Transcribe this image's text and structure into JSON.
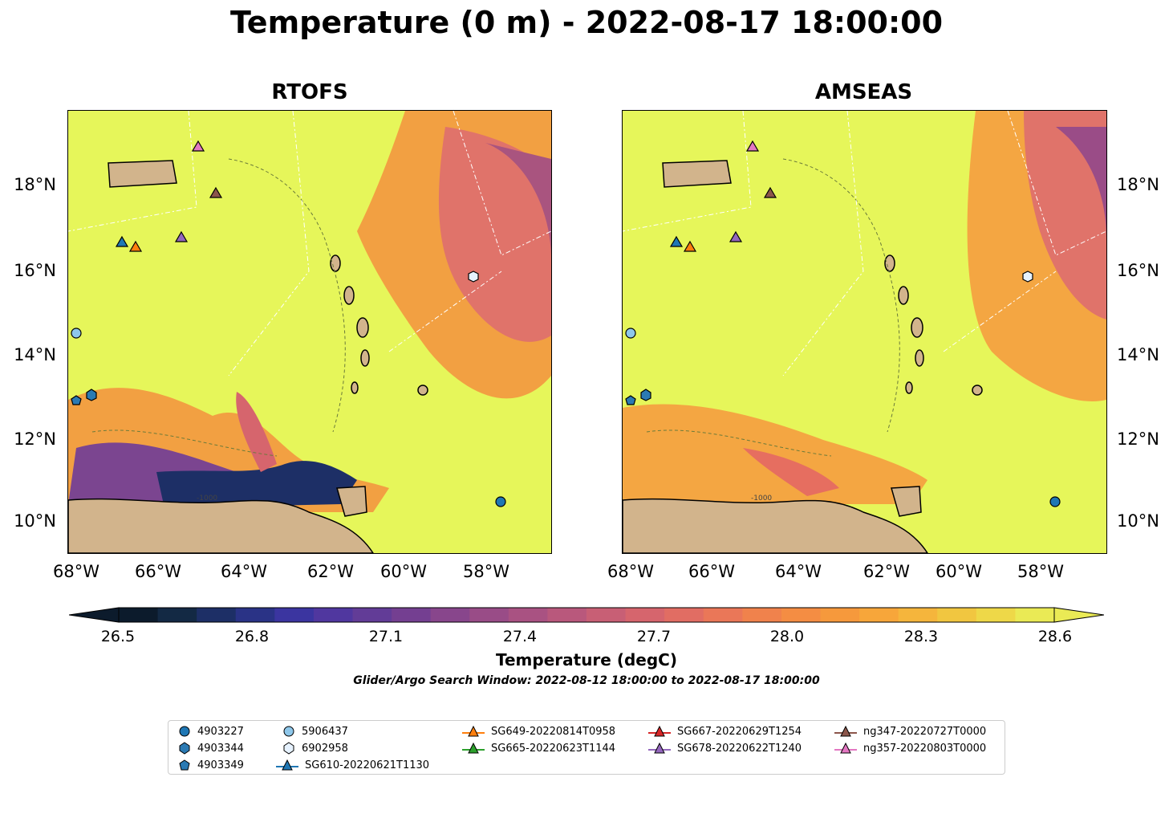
{
  "title": "Temperature (0 m) - 2022-08-17 18:00:00",
  "panels": [
    {
      "title": "RTOFS"
    },
    {
      "title": "AMSEAS"
    }
  ],
  "x_ticks": [
    "68°W",
    "66°W",
    "64°W",
    "62°W",
    "60°W",
    "58°W"
  ],
  "y_ticks": [
    "18°N",
    "16°N",
    "14°N",
    "12°N",
    "10°N"
  ],
  "contour_label": "-1000",
  "colorbar": {
    "title": "Temperature (degC)",
    "ticks": [
      "26.5",
      "26.8",
      "27.1",
      "27.4",
      "27.7",
      "28.0",
      "28.3",
      "28.6"
    ],
    "colors": [
      "#0c1b2c",
      "#132944",
      "#1d2f66",
      "#2a3386",
      "#3b35a0",
      "#50379f",
      "#623c97",
      "#743f91",
      "#88468c",
      "#994c87",
      "#a95282",
      "#b9587c",
      "#c85f75",
      "#d6656d",
      "#e16d63",
      "#ea7758",
      "#f0824c",
      "#f48d43",
      "#f6993c",
      "#f7a63a",
      "#f5b53c",
      "#f1c640",
      "#eed848",
      "#eaea55"
    ]
  },
  "search_window": "Glider/Argo Search Window: 2022-08-12 18:00:00 to 2022-08-17 18:00:00",
  "colors": {
    "land": "#d2b48c",
    "water_base": "#e6f65a",
    "warm": "#f0a040",
    "hot": "#d66a6a",
    "cold": "#1b1d4f"
  },
  "legend": {
    "col1": [
      "4903227",
      "4903344",
      "4903349"
    ],
    "col2": [
      "5906437",
      "6902958",
      "SG610-20220621T1130"
    ],
    "col3": [
      "SG649-20220814T0958",
      "SG665-20220623T1144"
    ],
    "col4": [
      "SG667-20220629T1254",
      "SG678-20220622T1240"
    ],
    "col5": [
      "ng347-20220727T0000",
      "ng357-20220803T0000"
    ]
  }
}
